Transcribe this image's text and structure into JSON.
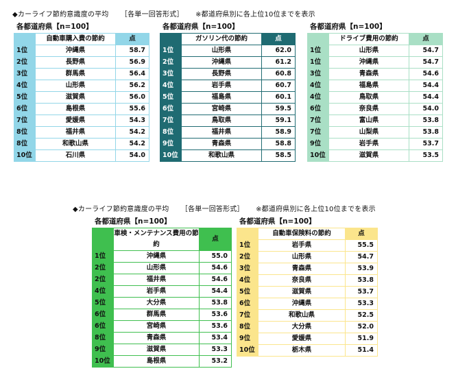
{
  "captions": [
    {
      "title": "◆カーライフ節約意識度の平均",
      "format": "［各単一回答形式］",
      "note": "※都道府県別に各上位10位までを表示"
    },
    {
      "title": "◆カーライフ節約意識度の平均",
      "format": "［各単一回答形式］",
      "note": "※都道府県別に各上位10位までを表示"
    }
  ],
  "tables": [
    {
      "subtitle": "各都道府県【n=100】",
      "header": "自動車購入費の節約",
      "score_label": "点",
      "color": "#92d6e8",
      "rows": [
        [
          "1位",
          "沖縄県",
          "58.7"
        ],
        [
          "2位",
          "長野県",
          "56.9"
        ],
        [
          "3位",
          "群馬県",
          "56.4"
        ],
        [
          "4位",
          "山形県",
          "56.2"
        ],
        [
          "5位",
          "滋賀県",
          "56.0"
        ],
        [
          "6位",
          "島根県",
          "55.6"
        ],
        [
          "7位",
          "愛媛県",
          "54.3"
        ],
        [
          "8位",
          "福井県",
          "54.2"
        ],
        [
          "8位",
          "和歌山県",
          "54.2"
        ],
        [
          "10位",
          "石川県",
          "54.0"
        ]
      ]
    },
    {
      "subtitle": "各都道府県【n=100】",
      "header": "ガソリン代の節約",
      "score_label": "点",
      "color": "#1f6b72",
      "rows": [
        [
          "1位",
          "山形県",
          "62.0"
        ],
        [
          "2位",
          "沖縄県",
          "61.2"
        ],
        [
          "3位",
          "長野県",
          "60.8"
        ],
        [
          "4位",
          "岩手県",
          "60.7"
        ],
        [
          "5位",
          "福島県",
          "60.1"
        ],
        [
          "6位",
          "宮崎県",
          "59.5"
        ],
        [
          "7位",
          "鳥取県",
          "59.1"
        ],
        [
          "8位",
          "福井県",
          "58.9"
        ],
        [
          "9位",
          "青森県",
          "58.8"
        ],
        [
          "10位",
          "和歌山県",
          "58.5"
        ]
      ]
    },
    {
      "subtitle": "各都道府県【n=100】",
      "header": "ドライブ費用の節約",
      "score_label": "点",
      "color": "#a9dfc5",
      "rows": [
        [
          "1位",
          "山形県",
          "54.7"
        ],
        [
          "1位",
          "沖縄県",
          "54.7"
        ],
        [
          "3位",
          "青森県",
          "54.6"
        ],
        [
          "4位",
          "福島県",
          "54.4"
        ],
        [
          "4位",
          "鳥取県",
          "54.4"
        ],
        [
          "6位",
          "奈良県",
          "54.0"
        ],
        [
          "7位",
          "富山県",
          "53.8"
        ],
        [
          "7位",
          "山梨県",
          "53.8"
        ],
        [
          "9位",
          "岩手県",
          "53.7"
        ],
        [
          "10位",
          "滋賀県",
          "53.5"
        ]
      ]
    },
    {
      "subtitle": "各都道府県【n=100】",
      "header": "車検・メンテナンス費用の節約",
      "score_label": "点",
      "color": "#3fbf4f",
      "rows": [
        [
          "1位",
          "沖縄県",
          "55.0"
        ],
        [
          "2位",
          "山形県",
          "54.6"
        ],
        [
          "2位",
          "福井県",
          "54.6"
        ],
        [
          "4位",
          "岩手県",
          "54.4"
        ],
        [
          "5位",
          "大分県",
          "53.8"
        ],
        [
          "6位",
          "群馬県",
          "53.6"
        ],
        [
          "6位",
          "宮崎県",
          "53.6"
        ],
        [
          "8位",
          "青森県",
          "53.4"
        ],
        [
          "9位",
          "滋賀県",
          "53.3"
        ],
        [
          "10位",
          "島根県",
          "53.2"
        ]
      ]
    },
    {
      "subtitle": "各都道府県【n=100】",
      "header": "自動車保険料の節約",
      "score_label": "点",
      "color": "#fbe58c",
      "rows": [
        [
          "1位",
          "岩手県",
          "55.5"
        ],
        [
          "2位",
          "山形県",
          "54.7"
        ],
        [
          "3位",
          "青森県",
          "53.9"
        ],
        [
          "4位",
          "奈良県",
          "53.8"
        ],
        [
          "5位",
          "滋賀県",
          "53.7"
        ],
        [
          "6位",
          "沖縄県",
          "53.3"
        ],
        [
          "7位",
          "和歌山県",
          "52.5"
        ],
        [
          "8位",
          "大分県",
          "52.0"
        ],
        [
          "9位",
          "愛媛県",
          "51.9"
        ],
        [
          "10位",
          "栃木県",
          "51.4"
        ]
      ]
    }
  ]
}
